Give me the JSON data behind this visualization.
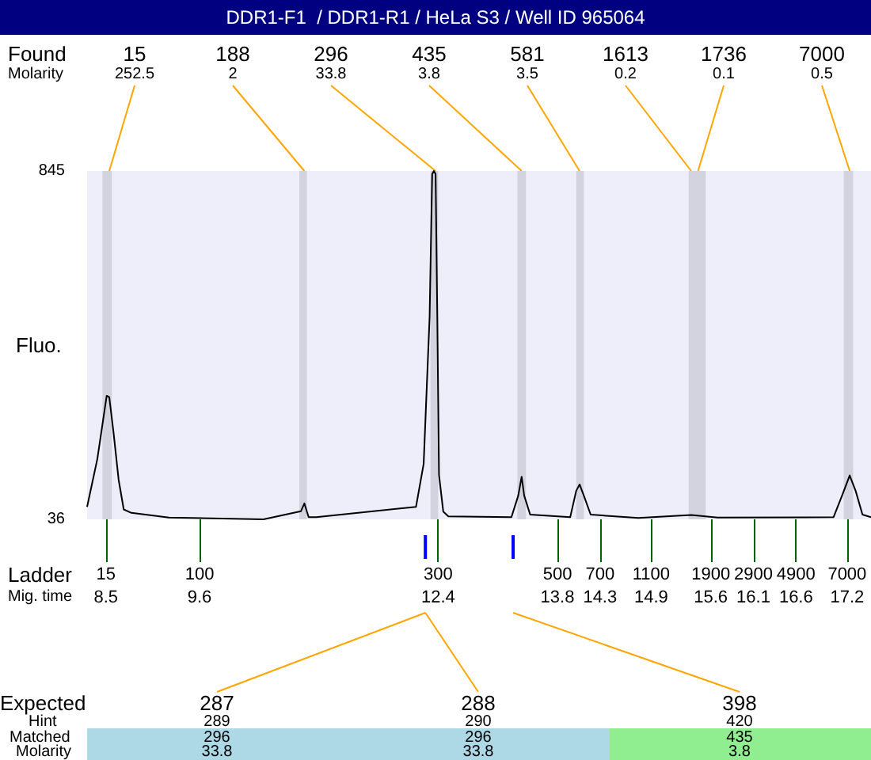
{
  "chart_data": {
    "type": "line",
    "title": "DDR1-F1  / DDR1-R1 / HeLa S3 / Well ID 965064",
    "ylabel": "Fluo.",
    "x": [
      8.28,
      8.4,
      8.51,
      8.54,
      8.59,
      8.65,
      8.71,
      8.8,
      9.24,
      10.35,
      10.79,
      10.83,
      10.88,
      10.97,
      12.14,
      12.23,
      12.3,
      12.33,
      12.35,
      12.37,
      12.39,
      12.41,
      12.46,
      12.52,
      13.26,
      13.34,
      13.38,
      13.41,
      13.48,
      13.95,
      14.02,
      14.06,
      14.11,
      14.19,
      14.75,
      15.37,
      15.68,
      17.04,
      17.14,
      17.23,
      17.3,
      17.38,
      17.48
    ],
    "series": [
      {
        "color": "#000000",
        "values": [
          65,
          176,
          323,
          320,
          238,
          128,
          59,
          51,
          40,
          36,
          55,
          73,
          41,
          41,
          65,
          165,
          507,
          838,
          845,
          838,
          507,
          139,
          54,
          43,
          41,
          91,
          135,
          91,
          47,
          41,
          102,
          117,
          91,
          47,
          39,
          46,
          40,
          41,
          91,
          138,
          102,
          47,
          41
        ]
      }
    ],
    "xlim": [
      8.28,
      17.48
    ],
    "ylim": [
      36,
      845
    ],
    "yticks": [
      36,
      845
    ],
    "xlabel": "Mig. time",
    "xticks": [
      8.5,
      9.6,
      12.4,
      13.8,
      14.3,
      14.9,
      15.6,
      16.1,
      16.6,
      17.2
    ],
    "bands": [
      {
        "axis": "x",
        "from": 8.46,
        "to": 8.57,
        "color": "#d3d3e0"
      },
      {
        "axis": "x",
        "from": 10.77,
        "to": 10.86,
        "color": "#d3d3e0"
      },
      {
        "axis": "x",
        "from": 12.31,
        "to": 12.4,
        "color": "#d3d3e0"
      },
      {
        "axis": "x",
        "from": 13.33,
        "to": 13.43,
        "color": "#d3d3e0"
      },
      {
        "axis": "x",
        "from": 14.02,
        "to": 14.11,
        "color": "#d3d3e0"
      },
      {
        "axis": "x",
        "from": 15.34,
        "to": 15.54,
        "color": "#d3d3e0"
      },
      {
        "axis": "x",
        "from": 17.16,
        "to": 17.27,
        "color": "#d3d3e0"
      }
    ],
    "annotations": [
      "Found",
      "Molarity",
      "Ladder",
      "Expected",
      "Hint",
      "Matched",
      "Molarity",
      {
        "text": "15",
        "x": 8.5,
        "y": 36
      },
      {
        "text": "100",
        "x": 9.6,
        "y": 36
      },
      {
        "text": "300",
        "x": 12.4,
        "y": 36
      },
      {
        "text": "500",
        "x": 13.8,
        "y": 36
      },
      {
        "text": "700",
        "x": 14.3,
        "y": 36
      },
      {
        "text": "1100",
        "x": 14.9,
        "y": 36
      },
      {
        "text": "1900",
        "x": 15.6,
        "y": 36
      },
      {
        "text": "2900",
        "x": 16.1,
        "y": 36
      },
      {
        "text": "4900",
        "x": 16.6,
        "y": 36
      },
      {
        "text": "7000",
        "x": 17.2,
        "y": 36
      },
      {
        "text": "15\n252.5",
        "x": 8.54,
        "y": 845
      },
      {
        "text": "188\n2",
        "x": 10.83,
        "y": 845
      },
      {
        "text": "296\n33.8",
        "x": 12.37,
        "y": 845
      },
      {
        "text": "435\n3.8",
        "x": 13.38,
        "y": 845
      },
      {
        "text": "581\n3.5",
        "x": 14.06,
        "y": 845
      },
      {
        "text": "1613\n0.2",
        "x": 15.37,
        "y": 845
      },
      {
        "text": "1736\n0.1",
        "x": 15.45,
        "y": 845
      },
      {
        "text": "7000\n0.5",
        "x": 17.23,
        "y": 845
      },
      {
        "text": "287\n289\n296\n33.8",
        "x": 12.25
      },
      {
        "text": "288\n290\n296\n33.8",
        "x": 12.25
      },
      {
        "text": "398\n420\n435\n3.8",
        "x": 13.28
      }
    ],
    "grid": false,
    "marker": "none",
    "line_style": "solid"
  }
}
